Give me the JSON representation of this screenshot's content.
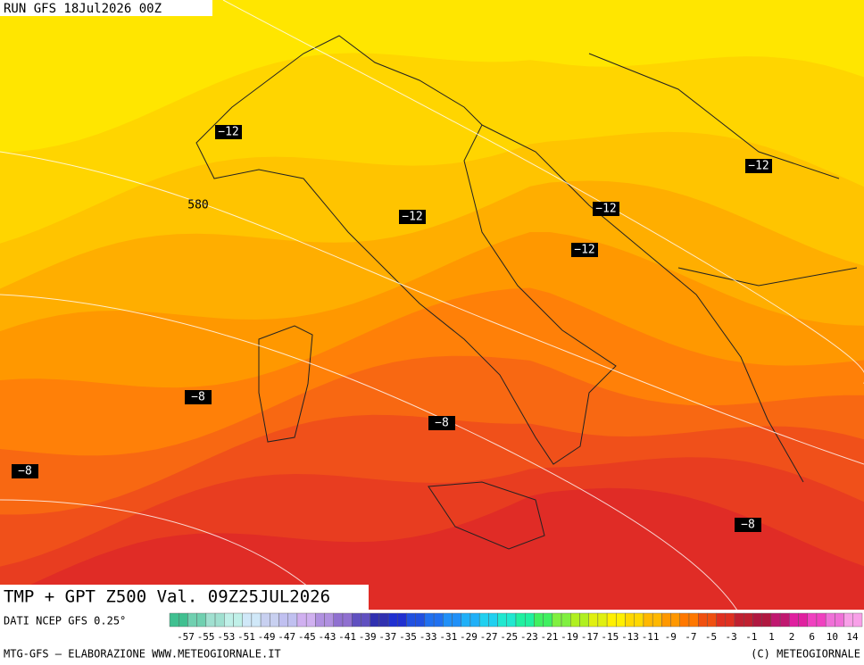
{
  "header": {
    "run": "RUN GFS 18Jul2026 00Z",
    "title": "TMP + GPT Z500 Val. 09Z25JUL2026"
  },
  "contour_labels": [
    {
      "text": "−12"
    },
    {
      "text": "−12"
    },
    {
      "text": "−12"
    },
    {
      "text": "−12"
    },
    {
      "text": "−12"
    },
    {
      "text": "−8"
    },
    {
      "text": "−8"
    },
    {
      "text": "−8"
    },
    {
      "text": "−8"
    },
    {
      "text": "580"
    }
  ],
  "legend": {
    "labels": [
      -57,
      -55,
      -53,
      -51,
      -49,
      -47,
      -45,
      -43,
      -41,
      -39,
      -37,
      -35,
      -33,
      -31,
      -29,
      -27,
      -25,
      -23,
      -21,
      -19,
      -17,
      -15,
      -13,
      -11,
      -9,
      -7,
      -5,
      -3,
      -1,
      1,
      2,
      6,
      10,
      14
    ]
  },
  "footer": {
    "source": "DATI NCEP GFS 0.25°",
    "credit": "MTG-GFS – ELABORAZIONE WWW.METEOGIORNALE.IT",
    "copyright": "(C) METEOGIORNALE"
  }
}
